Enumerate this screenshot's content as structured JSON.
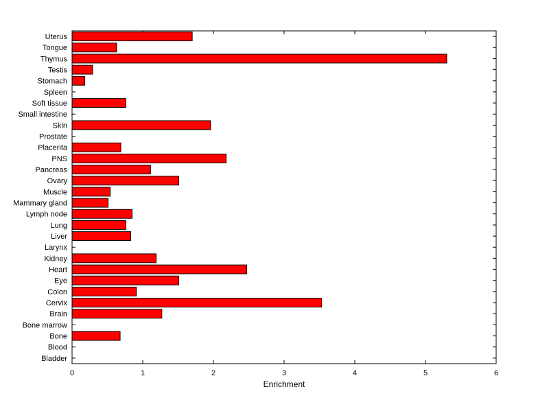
{
  "chart_data": {
    "type": "bar",
    "orientation": "horizontal",
    "title": "",
    "xlabel": "Enrichment",
    "ylabel": "",
    "xlim": [
      0,
      6
    ],
    "xticks": [
      0,
      1,
      2,
      3,
      4,
      5,
      6
    ],
    "grid": false,
    "legend": null,
    "bar_color": "#FF0000",
    "bar_edge_color": "#000000",
    "axis_color": "#000000",
    "background_color": "#FFFFFF",
    "categories_top_to_bottom": [
      "Uterus",
      "Tongue",
      "Thymus",
      "Testis",
      "Stomach",
      "Spleen",
      "Soft tissue",
      "Small intestine",
      "Skin",
      "Prostate",
      "Placenta",
      "PNS",
      "Pancreas",
      "Ovary",
      "Muscle",
      "Mammary gland",
      "Lymph node",
      "Lung",
      "Liver",
      "Larynx",
      "Kidney",
      "Heart",
      "Eye",
      "Colon",
      "Cervix",
      "Brain",
      "Bone marrow",
      "Bone",
      "Blood",
      "Bladder"
    ],
    "values": [
      1.7,
      0.63,
      5.3,
      0.29,
      0.18,
      0,
      0.76,
      0,
      1.96,
      0,
      0.69,
      2.18,
      1.11,
      1.51,
      0.54,
      0.51,
      0.85,
      0.76,
      0.83,
      0,
      1.19,
      2.47,
      1.51,
      0.91,
      3.53,
      1.27,
      0,
      0.68,
      0,
      0
    ]
  }
}
